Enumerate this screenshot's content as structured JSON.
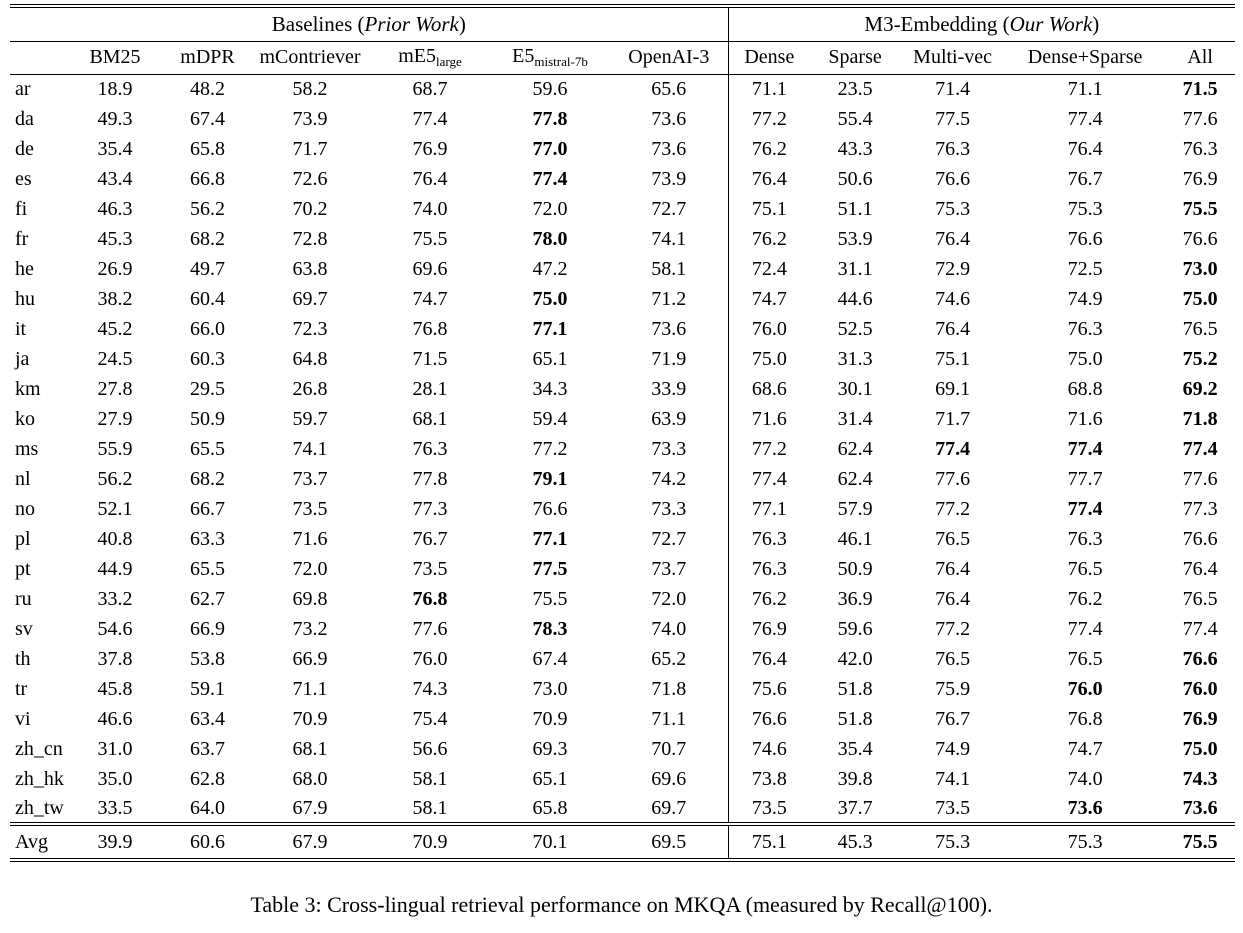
{
  "table": {
    "groups": [
      {
        "prefix": "Baselines (",
        "italic": "Prior Work",
        "suffix": ")"
      },
      {
        "prefix": "M3-Embedding (",
        "italic": "Our Work",
        "suffix": ")"
      }
    ],
    "columns": [
      {
        "label": "BM25"
      },
      {
        "label": "mDPR"
      },
      {
        "label": "mContriever"
      },
      {
        "label": "mE5",
        "sub": "large"
      },
      {
        "label": "E5",
        "sub": "mistral-7b"
      },
      {
        "label": "OpenAI-3"
      },
      {
        "label": "Dense"
      },
      {
        "label": "Sparse"
      },
      {
        "label": "Multi-vec"
      },
      {
        "label": "Dense+Sparse"
      },
      {
        "label": "All"
      }
    ],
    "rows": [
      {
        "lang": "ar",
        "values": [
          "18.9",
          "48.2",
          "58.2",
          "68.7",
          "59.6",
          "65.6",
          "71.1",
          "23.5",
          "71.4",
          "71.1",
          "71.5"
        ],
        "bold": [
          10
        ]
      },
      {
        "lang": "da",
        "values": [
          "49.3",
          "67.4",
          "73.9",
          "77.4",
          "77.8",
          "73.6",
          "77.2",
          "55.4",
          "77.5",
          "77.4",
          "77.6"
        ],
        "bold": [
          4
        ]
      },
      {
        "lang": "de",
        "values": [
          "35.4",
          "65.8",
          "71.7",
          "76.9",
          "77.0",
          "73.6",
          "76.2",
          "43.3",
          "76.3",
          "76.4",
          "76.3"
        ],
        "bold": [
          4
        ]
      },
      {
        "lang": "es",
        "values": [
          "43.4",
          "66.8",
          "72.6",
          "76.4",
          "77.4",
          "73.9",
          "76.4",
          "50.6",
          "76.6",
          "76.7",
          "76.9"
        ],
        "bold": [
          4
        ]
      },
      {
        "lang": "fi",
        "values": [
          "46.3",
          "56.2",
          "70.2",
          "74.0",
          "72.0",
          "72.7",
          "75.1",
          "51.1",
          "75.3",
          "75.3",
          "75.5"
        ],
        "bold": [
          10
        ]
      },
      {
        "lang": "fr",
        "values": [
          "45.3",
          "68.2",
          "72.8",
          "75.5",
          "78.0",
          "74.1",
          "76.2",
          "53.9",
          "76.4",
          "76.6",
          "76.6"
        ],
        "bold": [
          4
        ]
      },
      {
        "lang": "he",
        "values": [
          "26.9",
          "49.7",
          "63.8",
          "69.6",
          "47.2",
          "58.1",
          "72.4",
          "31.1",
          "72.9",
          "72.5",
          "73.0"
        ],
        "bold": [
          10
        ]
      },
      {
        "lang": "hu",
        "values": [
          "38.2",
          "60.4",
          "69.7",
          "74.7",
          "75.0",
          "71.2",
          "74.7",
          "44.6",
          "74.6",
          "74.9",
          "75.0"
        ],
        "bold": [
          4,
          10
        ]
      },
      {
        "lang": "it",
        "values": [
          "45.2",
          "66.0",
          "72.3",
          "76.8",
          "77.1",
          "73.6",
          "76.0",
          "52.5",
          "76.4",
          "76.3",
          "76.5"
        ],
        "bold": [
          4
        ]
      },
      {
        "lang": "ja",
        "values": [
          "24.5",
          "60.3",
          "64.8",
          "71.5",
          "65.1",
          "71.9",
          "75.0",
          "31.3",
          "75.1",
          "75.0",
          "75.2"
        ],
        "bold": [
          10
        ]
      },
      {
        "lang": "km",
        "values": [
          "27.8",
          "29.5",
          "26.8",
          "28.1",
          "34.3",
          "33.9",
          "68.6",
          "30.1",
          "69.1",
          "68.8",
          "69.2"
        ],
        "bold": [
          10
        ]
      },
      {
        "lang": "ko",
        "values": [
          "27.9",
          "50.9",
          "59.7",
          "68.1",
          "59.4",
          "63.9",
          "71.6",
          "31.4",
          "71.7",
          "71.6",
          "71.8"
        ],
        "bold": [
          10
        ]
      },
      {
        "lang": "ms",
        "values": [
          "55.9",
          "65.5",
          "74.1",
          "76.3",
          "77.2",
          "73.3",
          "77.2",
          "62.4",
          "77.4",
          "77.4",
          "77.4"
        ],
        "bold": [
          8,
          9,
          10
        ]
      },
      {
        "lang": "nl",
        "values": [
          "56.2",
          "68.2",
          "73.7",
          "77.8",
          "79.1",
          "74.2",
          "77.4",
          "62.4",
          "77.6",
          "77.7",
          "77.6"
        ],
        "bold": [
          4
        ]
      },
      {
        "lang": "no",
        "values": [
          "52.1",
          "66.7",
          "73.5",
          "77.3",
          "76.6",
          "73.3",
          "77.1",
          "57.9",
          "77.2",
          "77.4",
          "77.3"
        ],
        "bold": [
          9
        ]
      },
      {
        "lang": "pl",
        "values": [
          "40.8",
          "63.3",
          "71.6",
          "76.7",
          "77.1",
          "72.7",
          "76.3",
          "46.1",
          "76.5",
          "76.3",
          "76.6"
        ],
        "bold": [
          4
        ]
      },
      {
        "lang": "pt",
        "values": [
          "44.9",
          "65.5",
          "72.0",
          "73.5",
          "77.5",
          "73.7",
          "76.3",
          "50.9",
          "76.4",
          "76.5",
          "76.4"
        ],
        "bold": [
          4
        ]
      },
      {
        "lang": "ru",
        "values": [
          "33.2",
          "62.7",
          "69.8",
          "76.8",
          "75.5",
          "72.0",
          "76.2",
          "36.9",
          "76.4",
          "76.2",
          "76.5"
        ],
        "bold": [
          3
        ]
      },
      {
        "lang": "sv",
        "values": [
          "54.6",
          "66.9",
          "73.2",
          "77.6",
          "78.3",
          "74.0",
          "76.9",
          "59.6",
          "77.2",
          "77.4",
          "77.4"
        ],
        "bold": [
          4
        ]
      },
      {
        "lang": "th",
        "values": [
          "37.8",
          "53.8",
          "66.9",
          "76.0",
          "67.4",
          "65.2",
          "76.4",
          "42.0",
          "76.5",
          "76.5",
          "76.6"
        ],
        "bold": [
          10
        ]
      },
      {
        "lang": "tr",
        "values": [
          "45.8",
          "59.1",
          "71.1",
          "74.3",
          "73.0",
          "71.8",
          "75.6",
          "51.8",
          "75.9",
          "76.0",
          "76.0"
        ],
        "bold": [
          9,
          10
        ]
      },
      {
        "lang": "vi",
        "values": [
          "46.6",
          "63.4",
          "70.9",
          "75.4",
          "70.9",
          "71.1",
          "76.6",
          "51.8",
          "76.7",
          "76.8",
          "76.9"
        ],
        "bold": [
          10
        ]
      },
      {
        "lang": "zh_cn",
        "values": [
          "31.0",
          "63.7",
          "68.1",
          "56.6",
          "69.3",
          "70.7",
          "74.6",
          "35.4",
          "74.9",
          "74.7",
          "75.0"
        ],
        "bold": [
          10
        ]
      },
      {
        "lang": "zh_hk",
        "values": [
          "35.0",
          "62.8",
          "68.0",
          "58.1",
          "65.1",
          "69.6",
          "73.8",
          "39.8",
          "74.1",
          "74.0",
          "74.3"
        ],
        "bold": [
          10
        ]
      },
      {
        "lang": "zh_tw",
        "values": [
          "33.5",
          "64.0",
          "67.9",
          "58.1",
          "65.8",
          "69.7",
          "73.5",
          "37.7",
          "73.5",
          "73.6",
          "73.6"
        ],
        "bold": [
          9,
          10
        ]
      }
    ],
    "avg_row": {
      "lang": "Avg",
      "values": [
        "39.9",
        "60.6",
        "67.9",
        "70.9",
        "70.1",
        "69.5",
        "75.1",
        "45.3",
        "75.3",
        "75.3",
        "75.5"
      ],
      "bold": [
        10
      ]
    },
    "caption": "Table 3: Cross-lingual retrieval performance on MKQA (measured by Recall@100)."
  }
}
